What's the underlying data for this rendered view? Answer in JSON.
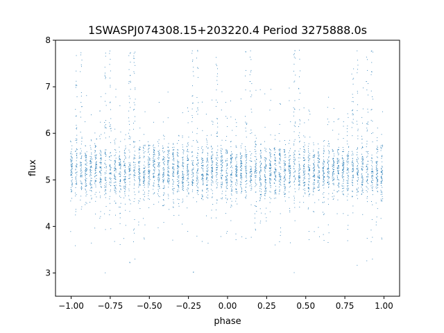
{
  "chart_data": {
    "type": "scatter",
    "title": "1SWASPJ074308.15+203220.4 Period 3275888.0s",
    "xlabel": "phase",
    "ylabel": "flux",
    "xlim": [
      -1.1,
      1.1
    ],
    "ylim": [
      2.5,
      8.0
    ],
    "xticks": [
      -1.0,
      -0.75,
      -0.5,
      -0.25,
      0.0,
      0.25,
      0.5,
      0.75,
      1.0
    ],
    "xtick_labels": [
      "−1.00",
      "−0.75",
      "−0.50",
      "−0.25",
      "0.00",
      "0.25",
      "0.50",
      "0.75",
      "1.00"
    ],
    "yticks": [
      3,
      4,
      5,
      6,
      7,
      8
    ],
    "ytick_labels": [
      "3",
      "4",
      "5",
      "6",
      "7",
      "8"
    ],
    "grid": false,
    "marker_color": "#1f77b4",
    "series_description": "Folded light curve: dense vertical bands of points centred near flux 5.2 (core spread ~4.6–5.9), band spacing ~0.03 in phase, sparse outliers from ~2.7 up to ~7.8, taller plumes near phase -0.95, -0.75, -0.2, -0.07, 0.12, 0.8, 0.92; pattern repeats with period 1 in phase.",
    "band_spacing": 0.031,
    "plume_phases": [
      -0.95,
      -0.78,
      -0.62,
      -0.2,
      -0.07,
      0.12,
      0.43,
      0.8,
      0.92
    ],
    "median_flux": 5.2
  }
}
